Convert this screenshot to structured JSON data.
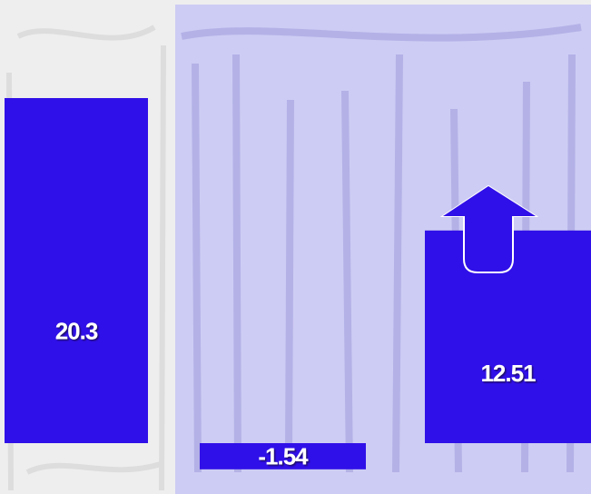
{
  "chart_data": {
    "type": "bar",
    "values": [
      20.3,
      -1.54,
      12.51
    ],
    "color": "#3010e8"
  }
}
